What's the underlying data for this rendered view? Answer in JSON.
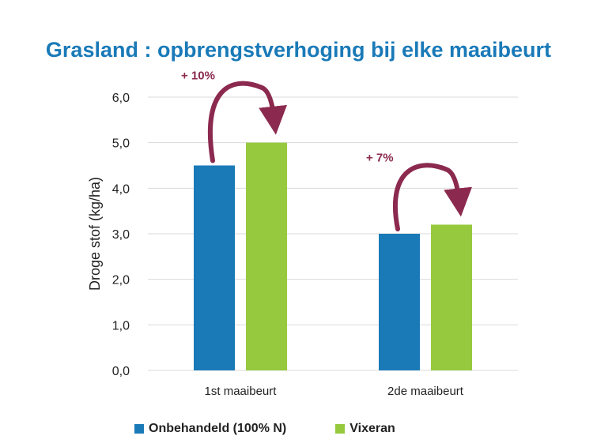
{
  "chart_data": {
    "type": "bar",
    "title": "Grasland : opbrengstverhoging bij elke maaibeurt",
    "ylabel": "Droge stof (kg/ha)",
    "xlabel": "",
    "ylim": [
      0,
      6
    ],
    "yticks": [
      "0,0",
      "1,0",
      "2,0",
      "3,0",
      "4,0",
      "5,0",
      "6,0"
    ],
    "grid": true,
    "legend_position": "bottom",
    "categories": [
      "1st maaibeurt",
      "2de maaibeurt"
    ],
    "series": [
      {
        "name": "Onbehandeld (100% N)",
        "values": [
          4.5,
          3.0
        ],
        "color": "#1a7ab8"
      },
      {
        "name": "Vixeran",
        "values": [
          5.0,
          3.2
        ],
        "color": "#96c93d"
      }
    ],
    "annotations": [
      {
        "text": "+ 10%",
        "category": 0
      },
      {
        "text": "+ 7%",
        "category": 1
      }
    ],
    "annotation_color": "#8b2a4e",
    "gridline_color": "#d9d9d9"
  }
}
